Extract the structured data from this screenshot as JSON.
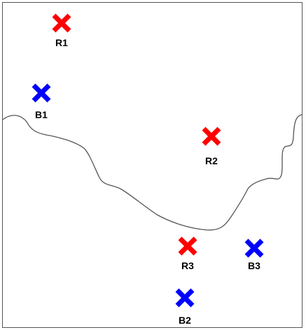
{
  "colors": {
    "red_marker": "#ff0000",
    "blue_marker": "#0000ff",
    "curve": "#555555",
    "frame": "#555555",
    "label": "#000000"
  },
  "markers": [
    {
      "id": "R1",
      "label": "R1",
      "color": "red"
    },
    {
      "id": "B1",
      "label": "B1",
      "color": "blue"
    },
    {
      "id": "R2",
      "label": "R2",
      "color": "red"
    },
    {
      "id": "R3",
      "label": "R3",
      "color": "red"
    },
    {
      "id": "B3",
      "label": "B3",
      "color": "blue"
    },
    {
      "id": "B2",
      "label": "B2",
      "color": "blue"
    }
  ]
}
